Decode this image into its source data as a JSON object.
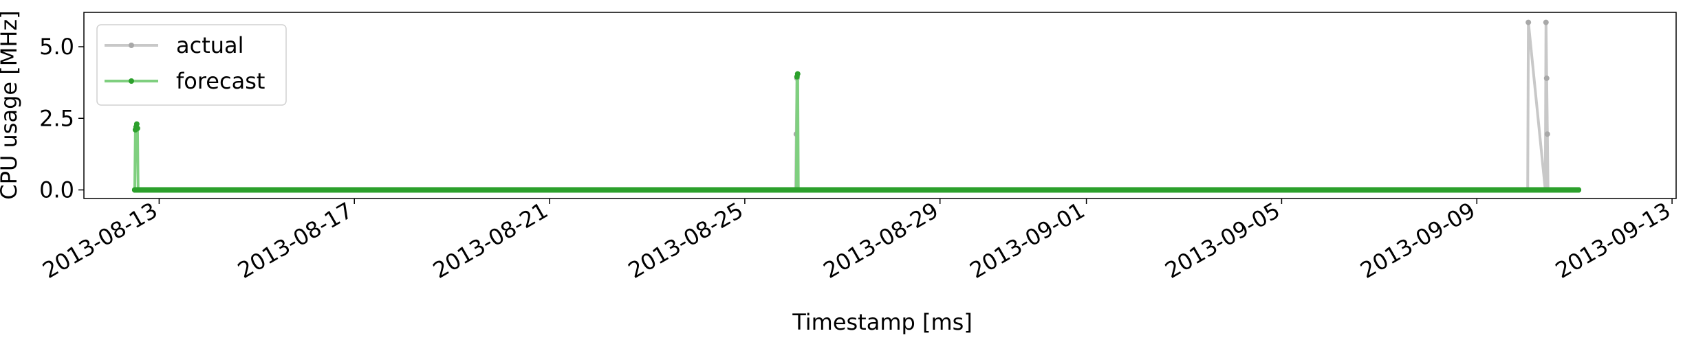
{
  "chart_data": {
    "type": "line",
    "title": "",
    "xlabel": "Timestamp [ms]",
    "ylabel": "CPU usage [MHz]",
    "ylim": [
      -0.3,
      6.2
    ],
    "xlim": [
      "2013-08-11T11:00",
      "2013-09-13T02:00"
    ],
    "grid": false,
    "legend_position": "top-left",
    "x_ticks": [
      "2013-08-13",
      "2013-08-17",
      "2013-08-21",
      "2013-08-25",
      "2013-08-29",
      "2013-09-01",
      "2013-09-05",
      "2013-09-09",
      "2013-09-13"
    ],
    "y_ticks": [
      {
        "value": 0.0,
        "label": "0.0"
      },
      {
        "value": 2.5,
        "label": "2.5"
      },
      {
        "value": 5.0,
        "label": "5.0"
      }
    ],
    "series": [
      {
        "name": "actual",
        "color": "#c8c8c8",
        "marker_color": "#a8a8a8",
        "x": [
          "2013-08-12T12:00",
          "2013-08-26T01:00",
          "2013-08-26T01:20",
          "2013-08-26T01:40",
          "2013-08-26T02:00",
          "2013-09-10T01:00",
          "2013-09-10T01:20",
          "2013-09-10T09:40",
          "2013-09-10T10:00",
          "2013-09-10T10:20",
          "2013-09-10T10:40",
          "2013-09-10T11:00",
          "2013-09-11T02:00"
        ],
        "y": [
          0,
          0,
          1.95,
          3.9,
          0,
          0,
          5.85,
          0,
          5.85,
          3.9,
          1.95,
          0,
          0
        ]
      },
      {
        "name": "forecast",
        "color": "#7fcf7f",
        "marker_color": "#2ca02c",
        "baseline_color": "#2ca02c",
        "x": [
          "2013-08-12T12:00",
          "2013-08-12T12:20",
          "2013-08-12T12:40",
          "2013-08-12T13:00",
          "2013-08-12T13:20",
          "2013-08-12T13:40",
          "2013-08-26T01:20",
          "2013-08-26T01:40",
          "2013-08-26T02:00",
          "2013-08-26T02:20",
          "2013-09-11T02:00"
        ],
        "y": [
          0,
          2.1,
          2.2,
          2.3,
          2.15,
          0,
          0,
          3.95,
          4.05,
          0,
          0
        ]
      }
    ]
  }
}
